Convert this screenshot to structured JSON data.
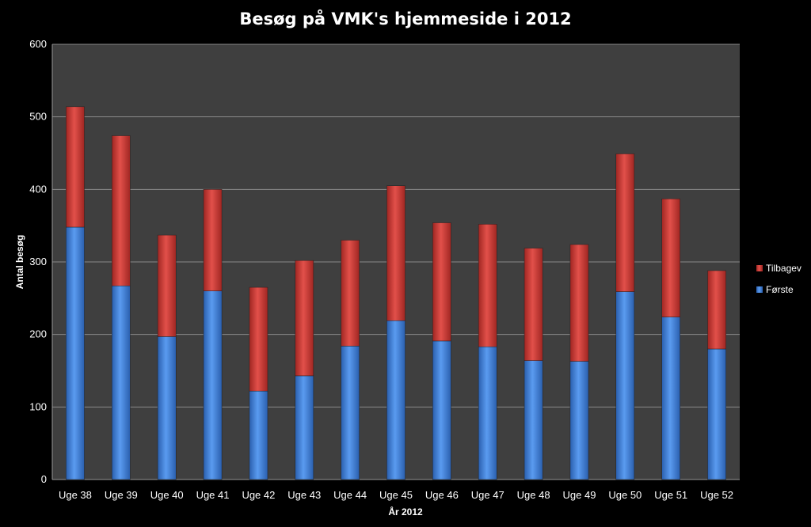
{
  "chart_data": {
    "type": "bar",
    "stacked": true,
    "title": "Besøg på  VMK's hjemmeside i 2012",
    "xlabel": "År 2012",
    "ylabel": "Antal besøg",
    "ylim": [
      0,
      600
    ],
    "yticks": [
      0,
      100,
      200,
      300,
      400,
      500,
      600
    ],
    "grid": true,
    "legend_position": "right",
    "categories": [
      "Uge 38",
      "Uge 39",
      "Uge 40",
      "Uge 41",
      "Uge 42",
      "Uge 43",
      "Uge 44",
      "Uge 45",
      "Uge 46",
      "Uge 47",
      "Uge 48",
      "Uge 49",
      "Uge 50",
      "Uge 51",
      "Uge 52"
    ],
    "series": [
      {
        "name": "Første",
        "color": "#3d7fd8",
        "values": [
          348,
          267,
          197,
          260,
          122,
          143,
          184,
          219,
          191,
          183,
          164,
          163,
          259,
          224,
          180
        ]
      },
      {
        "name": "Tilbagev",
        "color": "#d03a36",
        "values": [
          166,
          207,
          140,
          140,
          143,
          159,
          146,
          186,
          163,
          169,
          155,
          161,
          190,
          163,
          108
        ]
      }
    ],
    "legend_order": [
      "Tilbagev",
      "Første"
    ]
  }
}
